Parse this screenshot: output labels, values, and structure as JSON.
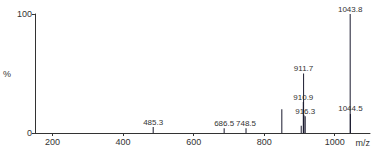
{
  "chart_data": {
    "type": "bar",
    "x": [
      485.3,
      686.5,
      748.5,
      850.0,
      905.0,
      910.9,
      911.7,
      912.7,
      916.3,
      1043.8,
      1044.5
    ],
    "values": [
      5,
      4,
      4,
      20,
      6,
      26,
      50,
      15,
      14,
      100,
      16
    ],
    "peak_labels": [
      "485.3",
      "686.5",
      "748.5",
      null,
      null,
      "910.9",
      "911.7",
      null,
      "916.3",
      "1043.8",
      "1044.5"
    ],
    "color": "#1a1a2e",
    "xlabel": "m/z",
    "ylabel": "%",
    "xlim": [
      150,
      1100
    ],
    "xticks": [
      200,
      400,
      600,
      800,
      1000
    ],
    "ylim": [
      0,
      100
    ],
    "yticks": [
      0,
      100
    ],
    "grid": false
  }
}
